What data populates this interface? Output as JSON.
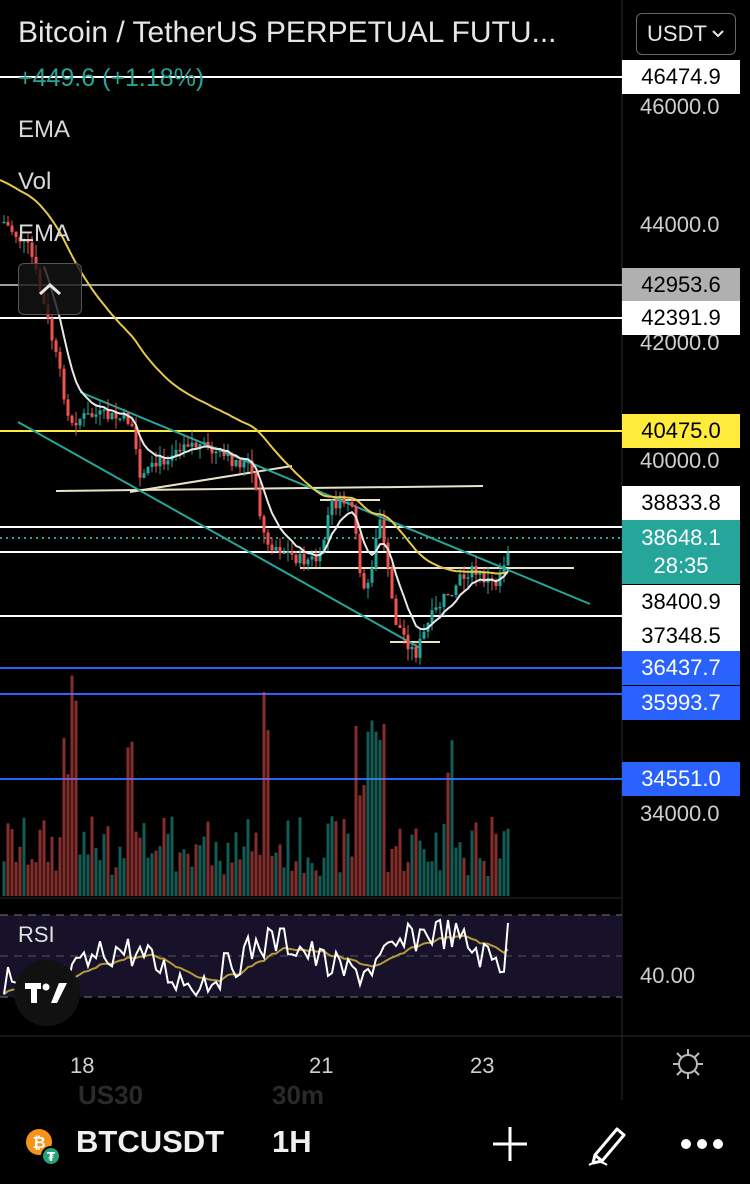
{
  "header": {
    "title": "Bitcoin / TetherUS PERPETUAL FUTU...",
    "change": "+449.6 (+1.18%)",
    "currency": "USDT"
  },
  "indicators": [
    "EMA",
    "Vol",
    "EMA"
  ],
  "price_axis": {
    "ticks": [
      "46000.0",
      "44000.0",
      "42000.0",
      "40000.0",
      "34000.0"
    ],
    "labels": [
      {
        "text": "46474.9",
        "style": "white"
      },
      {
        "text": "42953.6",
        "style": "grey"
      },
      {
        "text": "42391.9",
        "style": "white"
      },
      {
        "text": "40475.0",
        "style": "yellow"
      },
      {
        "text": "38833.8",
        "style": "white"
      },
      {
        "text": "38400.9",
        "style": "white"
      },
      {
        "text": "37348.5",
        "style": "white"
      },
      {
        "text": "36437.7",
        "style": "blue"
      },
      {
        "text": "35993.7",
        "style": "blue"
      },
      {
        "text": "34551.0",
        "style": "blue"
      }
    ],
    "current_price": "38648.1",
    "countdown": "28:35"
  },
  "rsi": {
    "label": "RSI",
    "tick": "40.00"
  },
  "time_axis": {
    "ticks": [
      "18",
      "21",
      "23"
    ]
  },
  "colors": {
    "up": "#26a69a",
    "down": "#ef5350",
    "ema_slow": "#e6c84a",
    "ema_fast": "#e8e8e8",
    "channel": "#26a69a",
    "blue_level": "#2962ff",
    "yellow_level": "#ffeb3b"
  },
  "bottom_bar": {
    "symbol": "BTCUSDT",
    "interval": "1H",
    "ghost_left": "US30",
    "ghost_right": "30m",
    "coin_icon": "bitcoin-icon",
    "add_icon": "plus-icon",
    "draw_icon": "pencil-icon",
    "more_icon": "more-dots-icon"
  }
}
